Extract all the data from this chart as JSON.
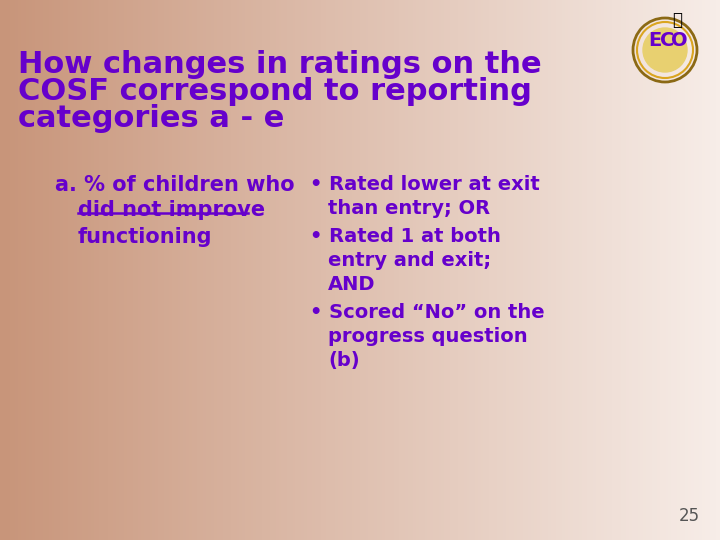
{
  "title_line1": "How changes in ratings on the",
  "title_line2": "COSF correspond to reporting",
  "title_line3": "categories a - e",
  "title_color": "#6600CC",
  "title_fontsize": 22,
  "title_bold": true,
  "bg_color_left": "#D4A090",
  "bg_color_right": "#F5EDE8",
  "left_label_a": "a. % of children who",
  "left_label_underline": "did not improve",
  "left_label_c": "functioning",
  "left_color": "#6600CC",
  "bullet_color": "#6600CC",
  "bullet1": "Rated lower at exit than entry; OR",
  "bullet2": "Rated 1 at both entry and exit; AND",
  "bullet3": "Scored “No” on the progress question (b)",
  "page_number": "25",
  "font_family": "DejaVu Sans"
}
